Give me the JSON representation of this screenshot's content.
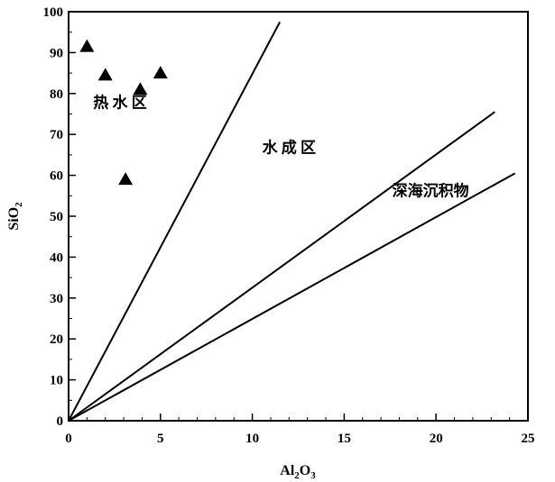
{
  "chart_data": {
    "type": "scatter",
    "title": "",
    "xlabel": "Al2O3",
    "ylabel": "SiO2",
    "xlim": [
      0,
      25
    ],
    "ylim": [
      0,
      100
    ],
    "xticks": [
      0,
      5,
      10,
      15,
      20,
      25
    ],
    "yticks": [
      0,
      10,
      20,
      30,
      40,
      50,
      60,
      70,
      80,
      90,
      100
    ],
    "xtick_labels": [
      "0",
      "5",
      "10",
      "15",
      "20",
      "25"
    ],
    "ytick_labels": [
      "0",
      "10",
      "20",
      "30",
      "40",
      "50",
      "60",
      "70",
      "80",
      "90",
      "100"
    ],
    "grid": false,
    "points": [
      {
        "x": 1.0,
        "y": 91.5
      },
      {
        "x": 2.0,
        "y": 84.5
      },
      {
        "x": 3.9,
        "y": 81.0
      },
      {
        "x": 5.0,
        "y": 85.0
      },
      {
        "x": 3.1,
        "y": 59.0
      }
    ],
    "boundary_lines": [
      {
        "x": [
          0,
          11.5
        ],
        "y": [
          0,
          97.5
        ]
      },
      {
        "x": [
          0,
          23.2
        ],
        "y": [
          0,
          75.5
        ]
      },
      {
        "x": [
          0,
          24.3
        ],
        "y": [
          0,
          60.5
        ]
      }
    ],
    "region_labels": [
      {
        "text": "热 水 区",
        "x": 2.8,
        "y": 76.5
      },
      {
        "text": "水 成 区",
        "x": 12.0,
        "y": 65.5
      },
      {
        "text": "深海沉积物",
        "x": 19.7,
        "y": 55.0
      }
    ],
    "marker": "filled-triangle",
    "colors": {
      "line": "#000000",
      "marker": "#000000"
    }
  }
}
